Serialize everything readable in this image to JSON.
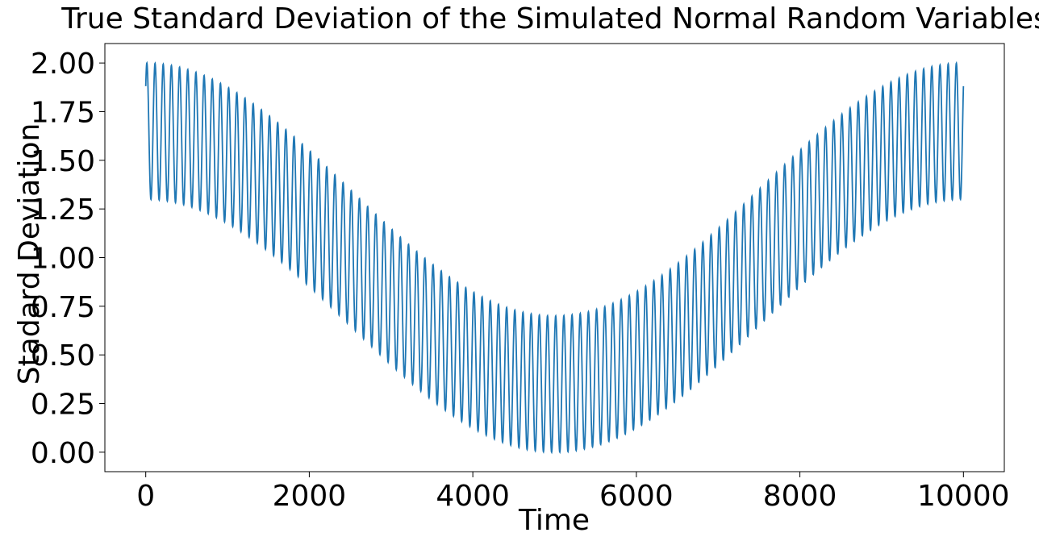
{
  "chart_data": {
    "type": "line",
    "title": "True Standard Deviation of the Simulated Normal Random Variables",
    "xlabel": "Time",
    "ylabel": "Stadard Deviation",
    "xlim": [
      -500,
      10500
    ],
    "ylim": [
      -0.1,
      2.1
    ],
    "x_ticks": [
      0,
      2000,
      4000,
      6000,
      8000,
      10000
    ],
    "x_tick_labels": [
      "0",
      "2000",
      "4000",
      "6000",
      "8000",
      "10000"
    ],
    "y_ticks": [
      0.0,
      0.25,
      0.5,
      0.75,
      1.0,
      1.25,
      1.5,
      1.75,
      2.0
    ],
    "y_tick_labels": [
      "0.00",
      "0.25",
      "0.50",
      "0.75",
      "1.00",
      "1.25",
      "1.50",
      "1.75",
      "2.00"
    ],
    "grid": false,
    "series": [
      {
        "color": "#1f77b4",
        "x_range": [
          0,
          10000
        ],
        "approx_formula": "0.35*sin(2*pi*t/100 + 0.72) + 0.65*cos(2*pi*t/10000) + 1.0",
        "envelope_max": 2.0,
        "envelope_min_at_center": 0.0,
        "oscillation_period": 100
      }
    ]
  }
}
